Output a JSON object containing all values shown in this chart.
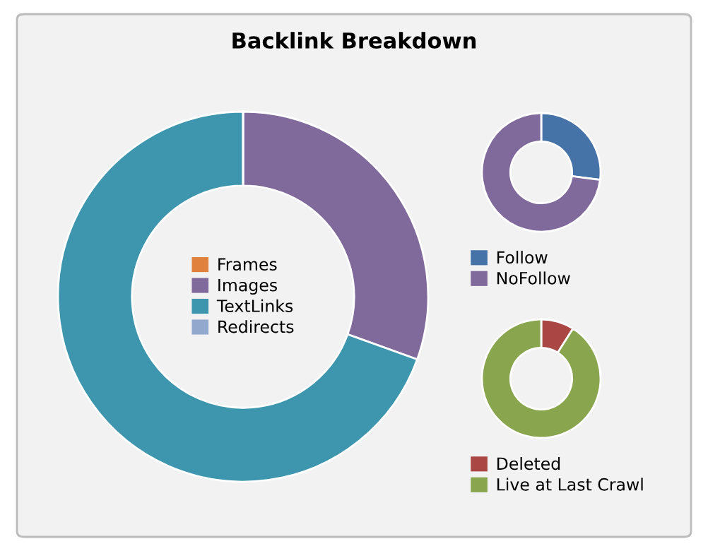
{
  "chart_data": [
    {
      "type": "donut",
      "title": "Backlink Breakdown",
      "categories": [
        "Frames",
        "Images",
        "TextLinks",
        "Redirects"
      ],
      "values": [
        0,
        30.5,
        69.5,
        0
      ],
      "colors": [
        "#e0823d",
        "#80699b",
        "#3d96ae",
        "#92a8cd"
      ],
      "legend": "center"
    },
    {
      "type": "donut",
      "categories": [
        "Follow",
        "NoFollow"
      ],
      "values": [
        27,
        73
      ],
      "colors": [
        "#4572a7",
        "#80699b"
      ],
      "legend": "bottom"
    },
    {
      "type": "donut",
      "categories": [
        "Deleted",
        "Live at Last Crawl"
      ],
      "values": [
        9,
        91
      ],
      "colors": [
        "#aa4643",
        "#89a54e"
      ],
      "legend": "bottom"
    }
  ]
}
